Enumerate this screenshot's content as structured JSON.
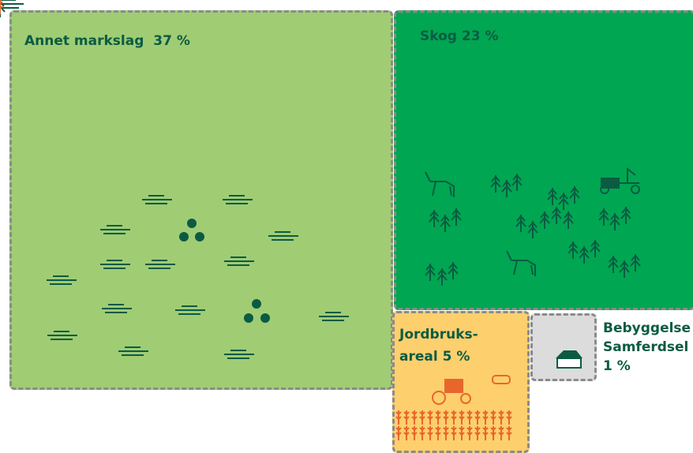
{
  "tiles": [
    {
      "label": "Annet markslag",
      "share": "37 %"
    },
    {
      "label": "Skog",
      "share": "23 %"
    },
    {
      "label": "Jordbruks-areal",
      "share": "5 %"
    },
    {
      "label_lines": [
        "Bebyggelse",
        "Samferdsel"
      ],
      "share": "1 %"
    }
  ]
}
